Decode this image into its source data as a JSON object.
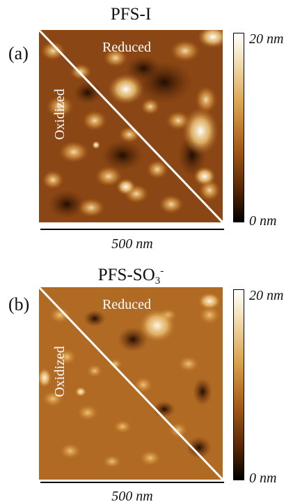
{
  "panels": [
    {
      "label": "(a)",
      "title_main": "PFS-I",
      "title_sub": "",
      "title_sup": "",
      "reduced_label": "Reduced",
      "oxidized_label": "Oxidized",
      "colorbar_max": "20 nm",
      "colorbar_min": "0 nm",
      "scalebar_label": "500 nm"
    },
    {
      "label": "(b)",
      "title_main": "PFS-SO",
      "title_sub": "3",
      "title_sup": "-",
      "reduced_label": "Reduced",
      "oxidized_label": "Oxidized",
      "colorbar_max": "20 nm",
      "colorbar_min": "0 nm",
      "scalebar_label": "500 nm"
    }
  ],
  "colors": {
    "afm_dark": "#2a1102",
    "afm_mid": "#a0561a",
    "afm_light": "#f2d28a",
    "divider": "#ffffff"
  }
}
